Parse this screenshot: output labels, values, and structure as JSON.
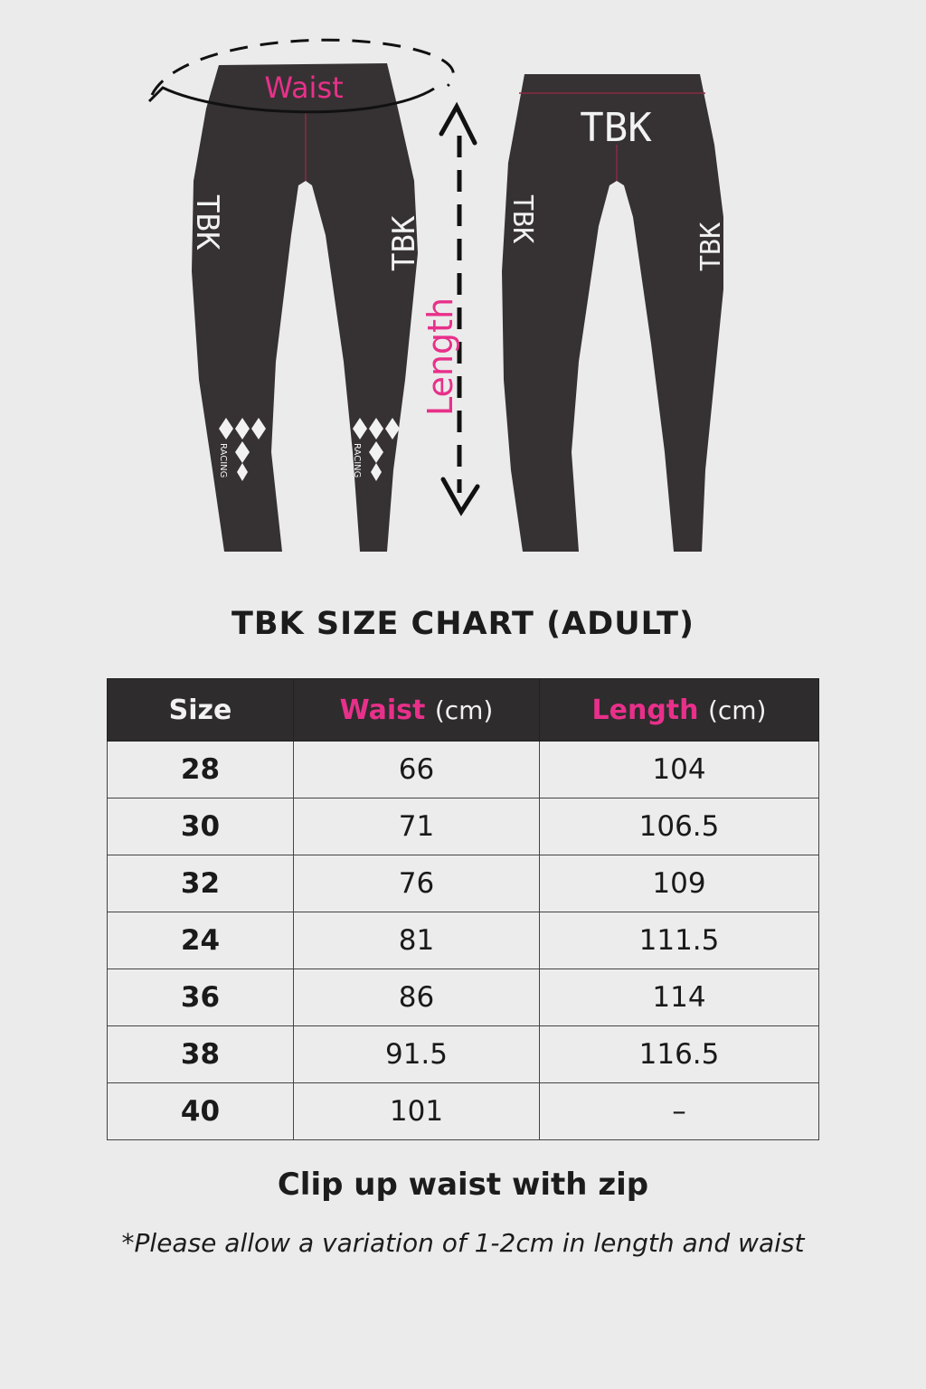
{
  "illustration": {
    "waist_label": "Waist",
    "length_label": "Length",
    "back_logo": "TBK",
    "side_logo": "TBK",
    "knee_logo": "RACING",
    "colors": {
      "garment": "#363233",
      "accent": "#e8308a",
      "seam": "#8a2a45"
    }
  },
  "title": "TBK SIZE CHART (ADULT)",
  "table": {
    "headers": [
      {
        "label": "Size",
        "unit": ""
      },
      {
        "label": "Waist",
        "unit": "(cm)"
      },
      {
        "label": "Length",
        "unit": "(cm)"
      }
    ],
    "rows": [
      [
        "28",
        "66",
        "104"
      ],
      [
        "30",
        "71",
        "106.5"
      ],
      [
        "32",
        "76",
        "109"
      ],
      [
        "24",
        "81",
        "111.5"
      ],
      [
        "36",
        "86",
        "114"
      ],
      [
        "38",
        "91.5",
        "116.5"
      ],
      [
        "40",
        "101",
        "–"
      ]
    ]
  },
  "notes": {
    "primary": "Clip up waist with zip",
    "secondary": "*Please allow a variation of 1-2cm in length and waist"
  }
}
